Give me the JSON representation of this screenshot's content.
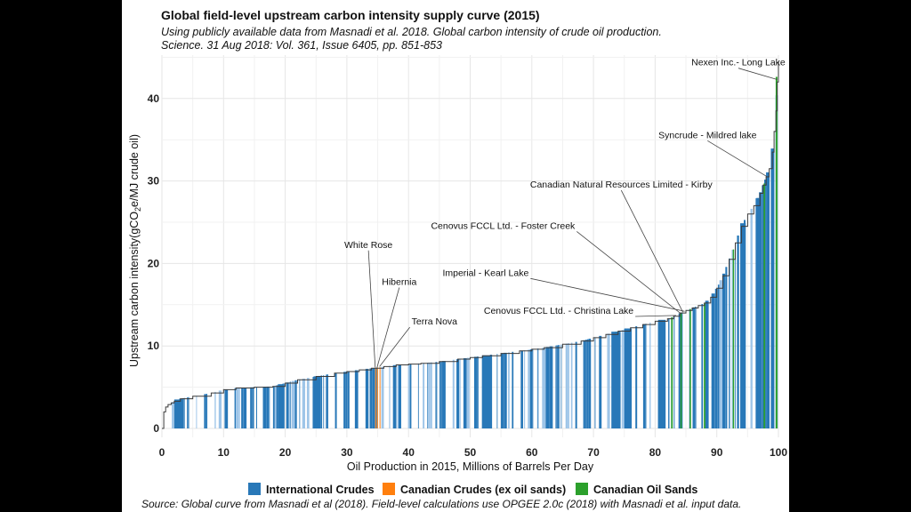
{
  "chart_data": {
    "type": "area",
    "title": "Global field-level upstream carbon intensity supply curve (2015)",
    "subtitle_lines": [
      "Using publicly available data from Masnadi et al. 2018. Global carbon intensity of crude oil production.",
      "Science. 31 Aug 2018: Vol. 361, Issue 6405, pp. 851-853"
    ],
    "xlabel": "Oil Production in 2015, Millions of Barrels Per Day",
    "ylabel_parts": [
      "Upstream carbon intensity(gCO",
      "2",
      "e/MJ crude oil)"
    ],
    "xlim": [
      0,
      100
    ],
    "ylim": [
      0,
      45
    ],
    "x_ticks": [
      0,
      10,
      20,
      30,
      40,
      50,
      60,
      70,
      80,
      90,
      100
    ],
    "y_ticks": [
      0,
      10,
      20,
      30,
      40
    ],
    "grid": true,
    "legend_position": "bottom",
    "curve": {
      "x": [
        0,
        0.3,
        0.6,
        1,
        1.5,
        2,
        3,
        5,
        8,
        10,
        12,
        15,
        18,
        20,
        22,
        25,
        28,
        30,
        32,
        34,
        36,
        38,
        40,
        42,
        45,
        48,
        50,
        52,
        55,
        58,
        60,
        62,
        65,
        68,
        70,
        72,
        74,
        76,
        78,
        80,
        82,
        83,
        84,
        85,
        86,
        87,
        88,
        89,
        90,
        91,
        92,
        93,
        94,
        95,
        96,
        97,
        97.5,
        98,
        98.5,
        99,
        99.3,
        99.6,
        99.8,
        100
      ],
      "y": [
        0,
        2,
        2.6,
        2.9,
        3.1,
        3.3,
        3.6,
        3.9,
        4.3,
        4.7,
        4.9,
        5.0,
        5.1,
        5.5,
        5.9,
        6.3,
        6.7,
        6.9,
        7.1,
        7.3,
        7.5,
        7.7,
        7.8,
        7.9,
        8.1,
        8.4,
        8.6,
        8.8,
        9.1,
        9.4,
        9.6,
        9.8,
        10.2,
        10.6,
        11.0,
        11.4,
        11.8,
        12.2,
        12.6,
        13.0,
        13.3,
        13.6,
        14.0,
        14.3,
        14.6,
        14.9,
        15.2,
        15.9,
        17.0,
        18.5,
        20.5,
        22.5,
        24.5,
        26.0,
        27.0,
        28.5,
        29.5,
        30.5,
        31.5,
        33.5,
        36.0,
        38.5,
        42.0,
        44.5
      ]
    },
    "series": [
      {
        "name": "International Crudes",
        "color": "#2878b8"
      },
      {
        "name": "Canadian Crudes (ex oil sands)",
        "color": "#ff7f0e"
      },
      {
        "name": "Canadian Oil Sands",
        "color": "#2ca02c"
      }
    ],
    "annotations": [
      {
        "label": "Nexen Inc.- Long Lake",
        "x": 99.8,
        "y": 42.3,
        "label_x": 93.5,
        "label_y": 44.0,
        "anchor": "middle"
      },
      {
        "label": "Syncrude - Mildred lake",
        "x": 98.2,
        "y": 30.5,
        "label_x": 88.5,
        "label_y": 35.2,
        "anchor": "middle"
      },
      {
        "label": "Canadian Natural Resources Limited - Kirby",
        "x": 84.5,
        "y": 14.1,
        "label_x": 74.5,
        "label_y": 29.2,
        "anchor": "middle"
      },
      {
        "label": "Cenovus FCCL Ltd. - Foster Creek",
        "x": 84.2,
        "y": 13.9,
        "label_x": 67.0,
        "label_y": 24.2,
        "anchor": "end"
      },
      {
        "label": "White Rose",
        "x": 34.6,
        "y": 7.4,
        "label_x": 33.5,
        "label_y": 21.9,
        "anchor": "middle"
      },
      {
        "label": "Hibernia",
        "x": 34.9,
        "y": 7.4,
        "label_x": 38.5,
        "label_y": 17.4,
        "anchor": "middle"
      },
      {
        "label": "Imperial - Kearl Lake",
        "x": 84.8,
        "y": 14.2,
        "label_x": 59.5,
        "label_y": 18.5,
        "anchor": "end"
      },
      {
        "label": "Terra Nova",
        "x": 35.3,
        "y": 7.5,
        "label_x": 40.5,
        "label_y": 12.6,
        "anchor": "start"
      },
      {
        "label": "Cenovus FCCL Ltd. - Christina Lake",
        "x": 83.4,
        "y": 13.7,
        "label_x": 76.5,
        "label_y": 13.9,
        "anchor": "end"
      }
    ]
  },
  "source_note": "Source: Global curve from Masnadi et al (2018). Field-level calculations use OPGEE 2.0c (2018) with Masnadi et al. input data."
}
